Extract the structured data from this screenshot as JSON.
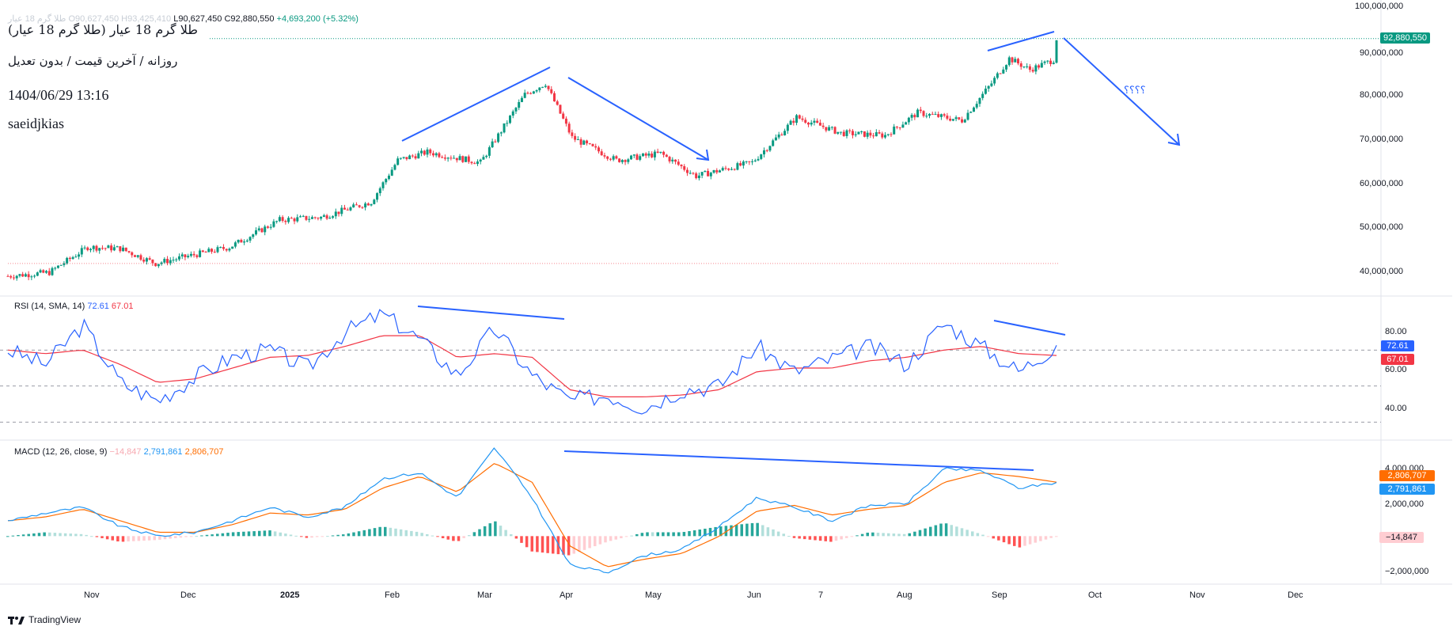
{
  "header": {
    "ohlc_faint": "طلا گرم 18 عيار",
    "ohlc_open_faint": "O90,627,450",
    "ohlc_high_faint": "H93,425,410",
    "ohlc_low": "L90,627,450",
    "ohlc_close": "C92,880,550",
    "ohlc_change": "+4,693,200 (+5.32%)",
    "symbol_title": "طلا گرم 18 عيار (طلا گرم 18 عيار)",
    "subtitle": "روزانه / آخرين قيمت / بدون تعديل",
    "datetime": "1404/06/29 13:16",
    "author": "saeidjkias",
    "question_marks": "؟؟؟؟"
  },
  "price_axis": {
    "labels": [
      "100,000,000",
      "90,000,000",
      "80,000,000",
      "70,000,000",
      "60,000,000",
      "50,000,000",
      "40,000,000"
    ],
    "current_price_label": "92,880,550"
  },
  "rsi": {
    "legend_name": "RSI (14, SMA, 14)",
    "legend_rsi": "72.61",
    "legend_ma": "67.01",
    "axis_labels": [
      "80.00",
      "60.00",
      "40.00"
    ],
    "badge_rsi": "72.61",
    "badge_ma": "67.01"
  },
  "macd": {
    "legend_name": "MACD (12, 26, close, 9)",
    "legend_hist": "−14,847",
    "legend_macd": "2,791,861",
    "legend_signal": "2,806,707",
    "axis_labels": [
      "4,000,000",
      "2,000,000",
      "−2,000,000"
    ],
    "badge_signal": "2,806,707",
    "badge_macd": "2,791,861",
    "badge_hist": "−14,847"
  },
  "time_axis": [
    "Nov",
    "Dec",
    "2025",
    "Feb",
    "Mar",
    "Apr",
    "May",
    "Jun",
    "7",
    "Aug",
    "Sep",
    "Oct",
    "Nov",
    "Dec"
  ],
  "footer": {
    "brand": "TradingView"
  },
  "colors": {
    "up": "#089981",
    "down": "#f23645",
    "rsi": "#2962ff",
    "rsi_ma": "#f23645",
    "macd": "#2196f3",
    "signal": "#ff6d00",
    "hist_up": "#26a69a",
    "hist_up_light": "#b2dfdb",
    "hist_down": "#ff5252",
    "hist_down_light": "#ffcdd2",
    "drawing": "#2962ff"
  },
  "chart_data": [
    {
      "type": "candlestick",
      "title": "",
      "series": [
        {
          "name": "طلا گرم 18 عيار",
          "points": [
            [
              "2024-10-01",
              40400000
            ],
            [
              "2024-10-15",
              41200000
            ],
            [
              "2024-10-28",
              46800000
            ],
            [
              "2024-11-08",
              46500000
            ],
            [
              "2024-11-20",
              43200000
            ],
            [
              "2024-12-01",
              44800000
            ],
            [
              "2024-12-15",
              46800000
            ],
            [
              "2025-01-01",
              52800000
            ],
            [
              "2025-01-15",
              53400000
            ],
            [
              "2025-02-01",
              56800000
            ],
            [
              "2025-02-10",
              66000000
            ],
            [
              "2025-02-20",
              67800000
            ],
            [
              "2025-03-10",
              65500000
            ],
            [
              "2025-03-25",
              80500000
            ],
            [
              "2025-04-01",
              83000000
            ],
            [
              "2025-04-10",
              71000000
            ],
            [
              "2025-04-25",
              66000000
            ],
            [
              "2025-05-10",
              67500000
            ],
            [
              "2025-05-22",
              62500000
            ],
            [
              "2025-06-10",
              65500000
            ],
            [
              "2025-06-25",
              75500000
            ],
            [
              "2025-07-10",
              72000000
            ],
            [
              "2025-07-25",
              71500000
            ],
            [
              "2025-08-05",
              76500000
            ],
            [
              "2025-08-20",
              74800000
            ],
            [
              "2025-08-30",
              83000000
            ],
            [
              "2025-09-05",
              88500000
            ],
            [
              "2025-09-12",
              86000000
            ],
            [
              "2025-09-20",
              88200000
            ],
            [
              "2025-09-21",
              92880550
            ]
          ]
        }
      ],
      "ylim": [
        36000000,
        100000000
      ]
    },
    {
      "type": "line",
      "title": "RSI (14, SMA, 14)",
      "series": [
        {
          "name": "RSI",
          "values": [
            70,
            62,
            84,
            52,
            42,
            55,
            66,
            70,
            60,
            80,
            90,
            76,
            56,
            82,
            56,
            42,
            45,
            38,
            48,
            50,
            72,
            58,
            65,
            72,
            62,
            85,
            72,
            58,
            72.61
          ]
        },
        {
          "name": "SMA",
          "values": [
            70,
            68,
            70,
            62,
            52,
            54,
            60,
            66,
            67,
            72,
            78,
            78,
            66,
            68,
            66,
            48,
            44,
            44,
            45,
            48,
            58,
            60,
            60,
            64,
            66,
            70,
            72,
            68,
            67.01
          ]
        }
      ],
      "ylim": [
        20,
        100
      ]
    },
    {
      "type": "line",
      "title": "MACD (12, 26, close, 9)",
      "series": [
        {
          "name": "MACD",
          "values": [
            800000,
            1200000,
            1500000,
            500000,
            0,
            200000,
            800000,
            1500000,
            1000000,
            1500000,
            3000000,
            3300000,
            2000000,
            4600000,
            2000000,
            -1500000,
            -1900000,
            -1000000,
            -700000,
            500000,
            2000000,
            1500000,
            800000,
            1600000,
            1700000,
            3500000,
            3400000,
            2500000,
            2791861
          ]
        },
        {
          "name": "Signal",
          "values": [
            800000,
            1000000,
            1400000,
            800000,
            200000,
            200000,
            600000,
            1200000,
            1100000,
            1400000,
            2500000,
            3100000,
            2300000,
            3800000,
            2800000,
            -500000,
            -1600000,
            -1200000,
            -900000,
            0,
            1300000,
            1600000,
            1100000,
            1400000,
            1600000,
            2800000,
            3300000,
            3100000,
            2806707
          ]
        }
      ],
      "ylim": [
        -2500000,
        5000000
      ]
    }
  ]
}
